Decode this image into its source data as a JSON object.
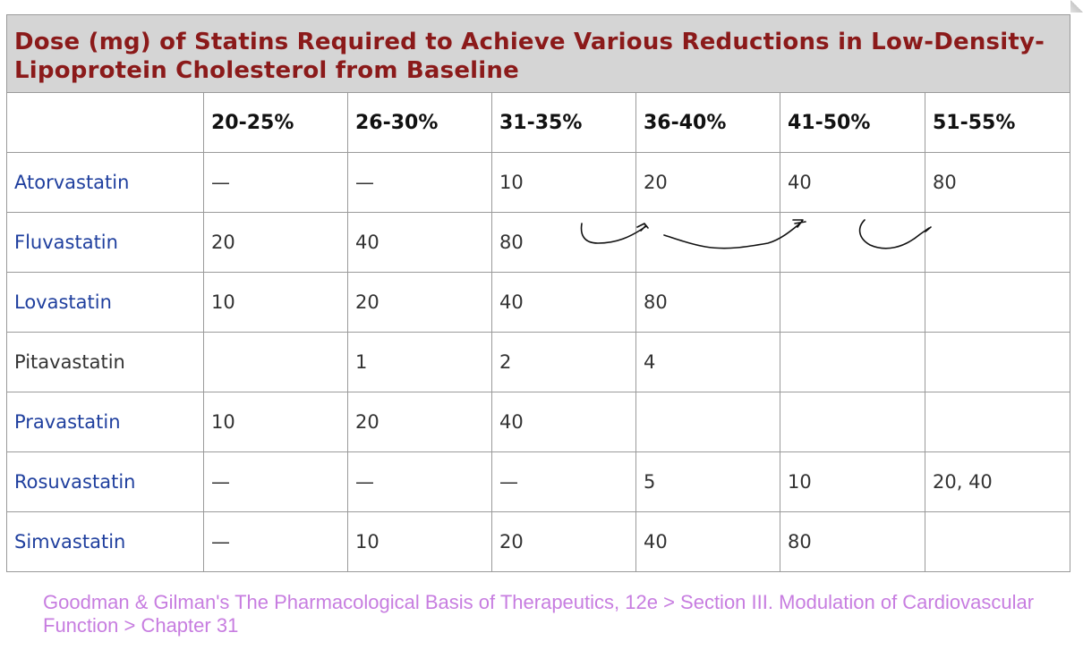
{
  "table": {
    "title": "Dose (mg) of Statins Required to Achieve Various Reductions in Low-Density-Lipoprotein Cholesterol from Baseline",
    "headers": [
      "",
      "20-25%",
      "26-30%",
      "31-35%",
      "36-40%",
      "41-50%",
      "51-55%"
    ],
    "rows": [
      {
        "drug": "Atorvastatin",
        "linked": true,
        "values": [
          "—",
          "—",
          "10",
          "20",
          "40",
          "80"
        ]
      },
      {
        "drug": "Fluvastatin",
        "linked": true,
        "values": [
          "20",
          "40",
          "80",
          "",
          "",
          ""
        ]
      },
      {
        "drug": "Lovastatin",
        "linked": true,
        "values": [
          "10",
          "20",
          "40",
          "80",
          "",
          ""
        ]
      },
      {
        "drug": "Pitavastatin",
        "linked": false,
        "values": [
          "",
          "1",
          "2",
          "4",
          "",
          ""
        ]
      },
      {
        "drug": "Pravastatin",
        "linked": true,
        "values": [
          "10",
          "20",
          "40",
          "",
          "",
          ""
        ]
      },
      {
        "drug": "Rosuvastatin",
        "linked": true,
        "values": [
          "—",
          "—",
          "—",
          "5",
          "10",
          "20, 40"
        ]
      },
      {
        "drug": "Simvastatin",
        "linked": true,
        "values": [
          "—",
          "10",
          "20",
          "40",
          "80",
          ""
        ]
      }
    ]
  },
  "source": "Goodman & Gilman's The Pharmacological Basis of Therapeutics, 12e > Section III. Modulation of Cardiovascular Function > Chapter 31",
  "colors": {
    "title_text": "#8b1a1a",
    "title_bar_bg": "#d5d5d5",
    "drug_link": "#1f3f9e",
    "source_text": "#c77de0",
    "grid_line": "#9a9a9a"
  },
  "annotations": {
    "handwritten_marks": "pen arrows"
  }
}
